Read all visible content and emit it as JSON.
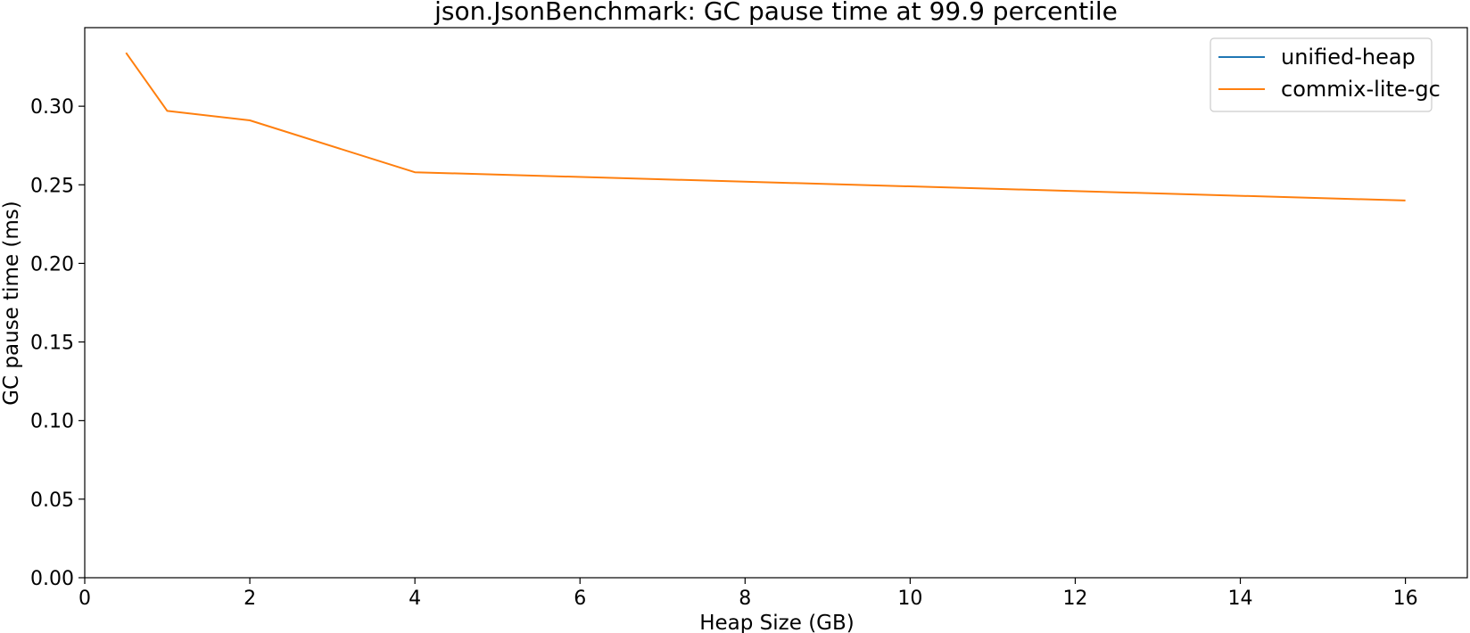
{
  "chart_data": {
    "type": "line",
    "title": "json.JsonBenchmark: GC pause time at 99.9 percentile",
    "xlabel": "Heap Size (GB)",
    "ylabel": "GC pause time (ms)",
    "xlim": [
      0,
      16.75
    ],
    "ylim": [
      0,
      0.35
    ],
    "xticks": [
      0,
      2,
      4,
      6,
      8,
      10,
      12,
      14,
      16
    ],
    "yticks": [
      0.0,
      0.05,
      0.1,
      0.15,
      0.2,
      0.25,
      0.3
    ],
    "grid": false,
    "legend_position": "top-right",
    "x": [
      0.5,
      1,
      2,
      4,
      16
    ],
    "series": [
      {
        "name": "unified-heap",
        "color": "#1f77b4",
        "values": [
          null,
          null,
          null,
          null,
          null
        ]
      },
      {
        "name": "commix-lite-gc",
        "color": "#ff7f0e",
        "values": [
          0.334,
          0.297,
          0.291,
          0.258,
          0.24
        ]
      }
    ]
  }
}
